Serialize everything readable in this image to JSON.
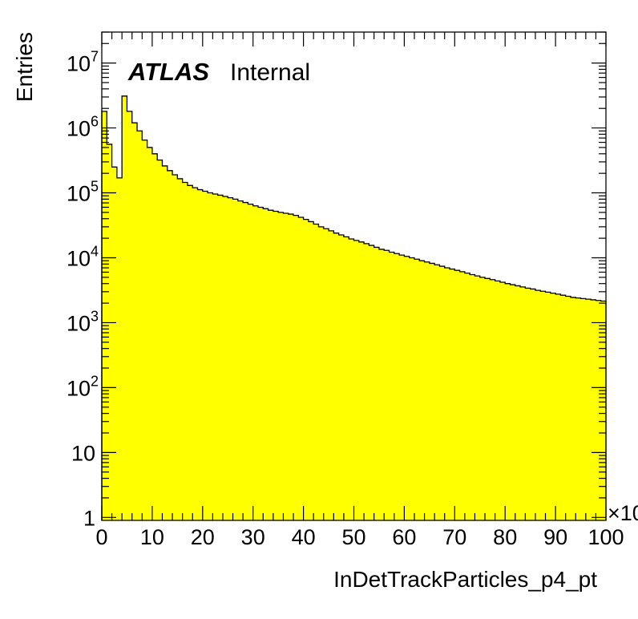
{
  "chart_data": {
    "type": "histogram",
    "atlas_label": "ATLAS",
    "atlas_status": "Internal",
    "xlabel": "InDetTrackParticles_p4_pt",
    "ylabel": "Entries",
    "x_multiplier": "×10",
    "xlim": [
      0,
      100
    ],
    "ylim": [
      0.9,
      30000000
    ],
    "y_scale": "log",
    "bin_width": 1,
    "x_ticks": [
      0,
      10,
      20,
      30,
      40,
      50,
      60,
      70,
      80,
      90,
      100
    ],
    "x_tick_labels": [
      "0",
      "10",
      "20",
      "30",
      "40",
      "50",
      "60",
      "70",
      "80",
      "90",
      "100"
    ],
    "y_ticks": [
      {
        "value": 1,
        "base": "1",
        "exp": ""
      },
      {
        "value": 10,
        "base": "10",
        "exp": ""
      },
      {
        "value": 100,
        "base": "10",
        "exp": "2"
      },
      {
        "value": 1000,
        "base": "10",
        "exp": "3"
      },
      {
        "value": 10000,
        "base": "10",
        "exp": "4"
      },
      {
        "value": 100000,
        "base": "10",
        "exp": "5"
      },
      {
        "value": 1000000,
        "base": "10",
        "exp": "6"
      },
      {
        "value": 10000000,
        "base": "10",
        "exp": "7"
      }
    ],
    "fill_color": "#ffff00",
    "line_color": "#000000",
    "values": [
      1800000,
      560000,
      250000,
      170000,
      3100000,
      1800000,
      1200000,
      900000,
      650000,
      500000,
      400000,
      320000,
      260000,
      220000,
      190000,
      165000,
      145000,
      130000,
      120000,
      112000,
      106000,
      100000,
      96000,
      92000,
      88000,
      84000,
      80000,
      75000,
      71000,
      67000,
      63000,
      60000,
      57000,
      54000,
      52000,
      50000,
      48500,
      47000,
      45000,
      42000,
      39000,
      36000,
      33000,
      30000,
      28000,
      26000,
      24000,
      22500,
      21000,
      19500,
      18500,
      17500,
      16500,
      15500,
      14500,
      13500,
      13000,
      12200,
      11600,
      11000,
      10500,
      10000,
      9500,
      9000,
      8600,
      8200,
      7800,
      7400,
      7000,
      6700,
      6400,
      6100,
      5800,
      5500,
      5250,
      5000,
      4800,
      4600,
      4400,
      4200,
      4000,
      3850,
      3700,
      3550,
      3400,
      3300,
      3150,
      3050,
      2950,
      2850,
      2750,
      2650,
      2550,
      2450,
      2400,
      2350,
      2300,
      2250,
      2200,
      2150
    ]
  }
}
